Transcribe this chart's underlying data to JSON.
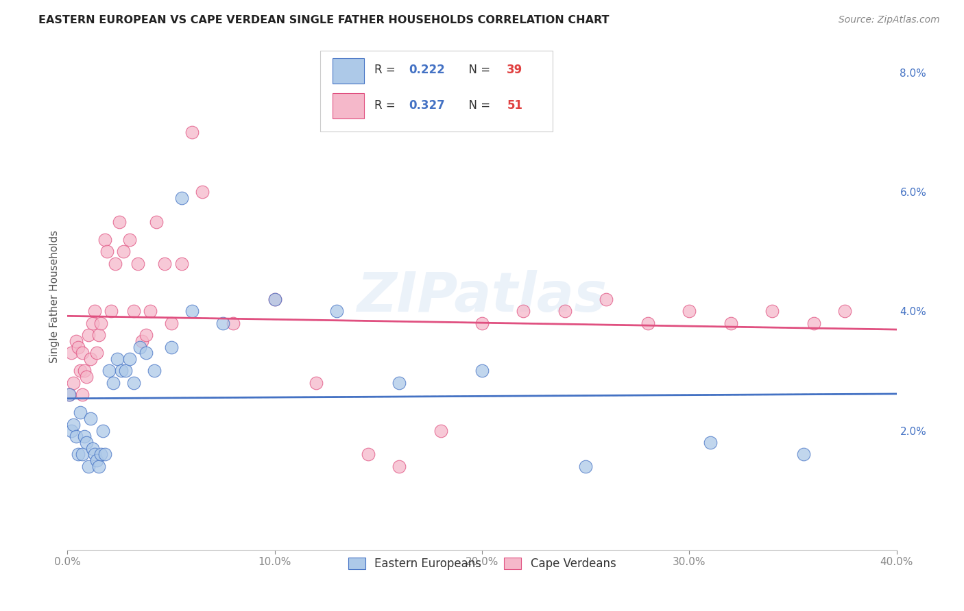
{
  "title": "EASTERN EUROPEAN VS CAPE VERDEAN SINGLE FATHER HOUSEHOLDS CORRELATION CHART",
  "source": "Source: ZipAtlas.com",
  "ylabel": "Single Father Households",
  "xlim": [
    0,
    0.4
  ],
  "ylim": [
    0,
    0.085
  ],
  "x_ticks": [
    0.0,
    0.1,
    0.2,
    0.3,
    0.4
  ],
  "x_tick_labels": [
    "0.0%",
    "10.0%",
    "20.0%",
    "30.0%",
    "40.0%"
  ],
  "y_ticks": [
    0.0,
    0.02,
    0.04,
    0.06,
    0.08
  ],
  "y_tick_labels": [
    "",
    "2.0%",
    "4.0%",
    "6.0%",
    "8.0%"
  ],
  "R_eastern": 0.222,
  "N_eastern": 39,
  "R_cape": 0.327,
  "N_cape": 51,
  "color_eastern": "#adc9e8",
  "color_cape": "#f5b8ca",
  "line_color_eastern": "#4472c4",
  "line_color_cape": "#e05080",
  "background_color": "#ffffff",
  "watermark": "ZIPatlas",
  "eastern_x": [
    0.001,
    0.002,
    0.003,
    0.004,
    0.005,
    0.006,
    0.007,
    0.008,
    0.009,
    0.01,
    0.011,
    0.012,
    0.013,
    0.014,
    0.015,
    0.016,
    0.017,
    0.018,
    0.02,
    0.022,
    0.024,
    0.026,
    0.028,
    0.03,
    0.032,
    0.035,
    0.038,
    0.042,
    0.05,
    0.055,
    0.06,
    0.075,
    0.1,
    0.13,
    0.16,
    0.2,
    0.25,
    0.31,
    0.355
  ],
  "eastern_y": [
    0.026,
    0.02,
    0.021,
    0.019,
    0.016,
    0.023,
    0.016,
    0.019,
    0.018,
    0.014,
    0.022,
    0.017,
    0.016,
    0.015,
    0.014,
    0.016,
    0.02,
    0.016,
    0.03,
    0.028,
    0.032,
    0.03,
    0.03,
    0.032,
    0.028,
    0.034,
    0.033,
    0.03,
    0.034,
    0.059,
    0.04,
    0.038,
    0.042,
    0.04,
    0.028,
    0.03,
    0.014,
    0.018,
    0.016
  ],
  "cape_x": [
    0.001,
    0.002,
    0.003,
    0.004,
    0.005,
    0.006,
    0.007,
    0.007,
    0.008,
    0.009,
    0.01,
    0.011,
    0.012,
    0.013,
    0.014,
    0.015,
    0.016,
    0.018,
    0.019,
    0.021,
    0.023,
    0.025,
    0.027,
    0.03,
    0.032,
    0.034,
    0.036,
    0.038,
    0.04,
    0.043,
    0.047,
    0.05,
    0.055,
    0.06,
    0.065,
    0.08,
    0.1,
    0.12,
    0.145,
    0.16,
    0.18,
    0.2,
    0.22,
    0.24,
    0.26,
    0.28,
    0.3,
    0.32,
    0.34,
    0.36,
    0.375
  ],
  "cape_y": [
    0.026,
    0.033,
    0.028,
    0.035,
    0.034,
    0.03,
    0.026,
    0.033,
    0.03,
    0.029,
    0.036,
    0.032,
    0.038,
    0.04,
    0.033,
    0.036,
    0.038,
    0.052,
    0.05,
    0.04,
    0.048,
    0.055,
    0.05,
    0.052,
    0.04,
    0.048,
    0.035,
    0.036,
    0.04,
    0.055,
    0.048,
    0.038,
    0.048,
    0.07,
    0.06,
    0.038,
    0.042,
    0.028,
    0.016,
    0.014,
    0.02,
    0.038,
    0.04,
    0.04,
    0.042,
    0.038,
    0.04,
    0.038,
    0.04,
    0.038,
    0.04
  ]
}
